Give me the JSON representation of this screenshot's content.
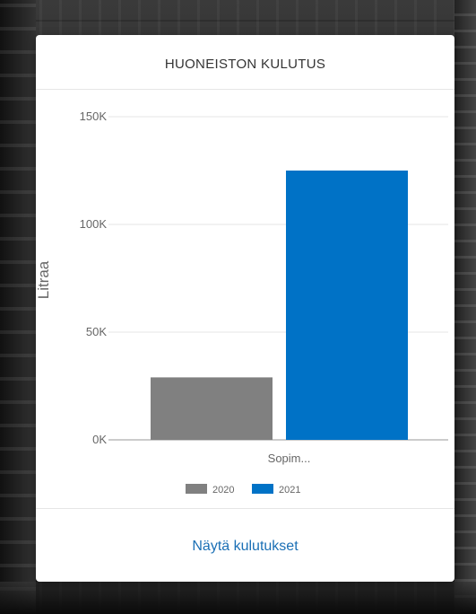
{
  "card": {
    "title": "HUONEISTON KULUTUS",
    "footer_link": "Näytä kulutukset"
  },
  "chart_data": {
    "type": "bar",
    "categories": [
      "Sopim..."
    ],
    "series": [
      {
        "name": "2020",
        "values": [
          29000
        ],
        "color": "#808080"
      },
      {
        "name": "2021",
        "values": [
          125000
        ],
        "color": "#0072c6"
      }
    ],
    "ylabel": "Litraa",
    "xlabel": "",
    "ylim": [
      0,
      150000
    ],
    "yticks": [
      0,
      50000,
      100000,
      150000
    ],
    "ytick_labels": [
      "0K",
      "50K",
      "100K",
      "150K"
    ],
    "grid": true,
    "legend_position": "bottom"
  }
}
